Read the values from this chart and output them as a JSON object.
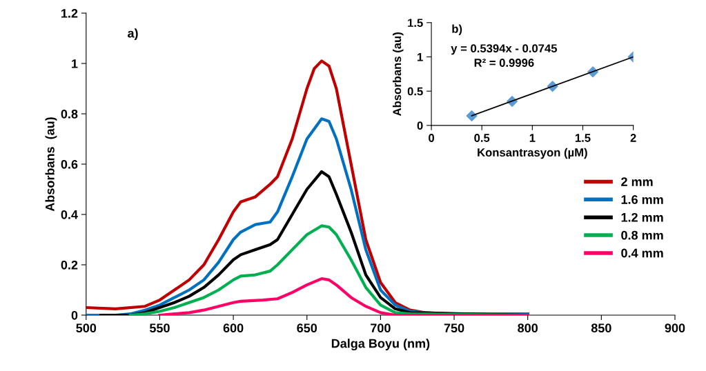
{
  "chart_data": [
    {
      "type": "line",
      "xlabel": "Dalga Boyu (nm)",
      "ylabel": "Absorbans  (au)",
      "annotations": [
        "a)"
      ],
      "xlim": [
        500,
        900
      ],
      "xticks": [
        500,
        550,
        600,
        650,
        700,
        750,
        800,
        850,
        900
      ],
      "ylim": [
        0,
        1.2
      ],
      "yticks": [
        0,
        0.2,
        0.4,
        0.6,
        0.8,
        1,
        1.2
      ],
      "grid": false,
      "legend": "right",
      "marker": "none",
      "line_style": "solid",
      "series": [
        {
          "name": "2 mm",
          "color": "#c00000",
          "x": [
            500,
            520,
            540,
            550,
            560,
            570,
            580,
            590,
            600,
            605,
            615,
            625,
            630,
            640,
            650,
            655,
            660,
            665,
            670,
            680,
            690,
            700,
            710,
            720,
            730,
            750,
            800
          ],
          "values": [
            0.03,
            0.025,
            0.035,
            0.06,
            0.1,
            0.14,
            0.2,
            0.3,
            0.41,
            0.45,
            0.47,
            0.52,
            0.55,
            0.7,
            0.9,
            0.98,
            1.01,
            0.99,
            0.9,
            0.6,
            0.3,
            0.13,
            0.05,
            0.02,
            0.01,
            0.005,
            0.005
          ]
        },
        {
          "name": "1.6 mm",
          "color": "#0070c0",
          "x": [
            500,
            520,
            530,
            540,
            550,
            560,
            570,
            580,
            590,
            600,
            605,
            615,
            625,
            630,
            640,
            650,
            660,
            665,
            670,
            680,
            690,
            700,
            710,
            720,
            740,
            800
          ],
          "values": [
            0,
            0,
            0.005,
            0.02,
            0.04,
            0.07,
            0.1,
            0.14,
            0.21,
            0.3,
            0.33,
            0.36,
            0.37,
            0.41,
            0.55,
            0.7,
            0.78,
            0.77,
            0.7,
            0.5,
            0.26,
            0.1,
            0.04,
            0.015,
            0.005,
            0.005
          ]
        },
        {
          "name": "1.2 mm",
          "color": "#000000",
          "x": [
            510,
            530,
            540,
            550,
            560,
            570,
            580,
            590,
            600,
            605,
            615,
            625,
            630,
            640,
            650,
            660,
            665,
            670,
            680,
            690,
            700,
            710,
            720,
            800
          ],
          "values": [
            0,
            0,
            0.01,
            0.03,
            0.05,
            0.075,
            0.11,
            0.16,
            0.22,
            0.24,
            0.26,
            0.28,
            0.3,
            0.4,
            0.5,
            0.57,
            0.55,
            0.48,
            0.33,
            0.16,
            0.07,
            0.025,
            0.01,
            0
          ]
        },
        {
          "name": "0.8 mm",
          "color": "#00b050",
          "x": [
            530,
            540,
            550,
            560,
            570,
            580,
            590,
            600,
            605,
            615,
            625,
            630,
            640,
            650,
            660,
            665,
            670,
            680,
            690,
            700,
            710,
            720,
            800
          ],
          "values": [
            0,
            0.005,
            0.015,
            0.03,
            0.05,
            0.07,
            0.1,
            0.14,
            0.155,
            0.16,
            0.175,
            0.2,
            0.26,
            0.32,
            0.355,
            0.35,
            0.32,
            0.22,
            0.11,
            0.04,
            0.01,
            0.005,
            0
          ]
        },
        {
          "name": "0.4 mm",
          "color": "#ff0066",
          "x": [
            550,
            560,
            570,
            580,
            590,
            600,
            605,
            620,
            630,
            640,
            650,
            660,
            665,
            670,
            680,
            690,
            700,
            710,
            800
          ],
          "values": [
            0,
            0.005,
            0.01,
            0.02,
            0.035,
            0.05,
            0.055,
            0.06,
            0.065,
            0.09,
            0.12,
            0.145,
            0.14,
            0.12,
            0.07,
            0.035,
            0.01,
            0,
            0
          ]
        }
      ]
    },
    {
      "type": "scatter",
      "xlabel": "Konsantrasyon (µM)",
      "ylabel": "Absorbans (au)",
      "annotations": [
        "b)",
        "y = 0.5394x - 0.0745",
        "R² = 0.9996"
      ],
      "xlim": [
        0,
        2
      ],
      "xticks": [
        0,
        0.5,
        1,
        1.5,
        2
      ],
      "ylim": [
        0,
        1.5
      ],
      "yticks": [
        0,
        0.5,
        1,
        1.5
      ],
      "grid": false,
      "legend": false,
      "marker": "diamond",
      "series": [
        {
          "color": "#5b9bd5",
          "x": [
            0.4,
            0.8,
            1.2,
            1.6,
            2
          ],
          "values": [
            0.14,
            0.35,
            0.57,
            0.78,
            1.0
          ]
        },
        {
          "type": "line",
          "color": "#000000",
          "marker": "none",
          "x": [
            0.4,
            2
          ],
          "values": [
            0.14,
            1.0
          ]
        }
      ]
    }
  ]
}
